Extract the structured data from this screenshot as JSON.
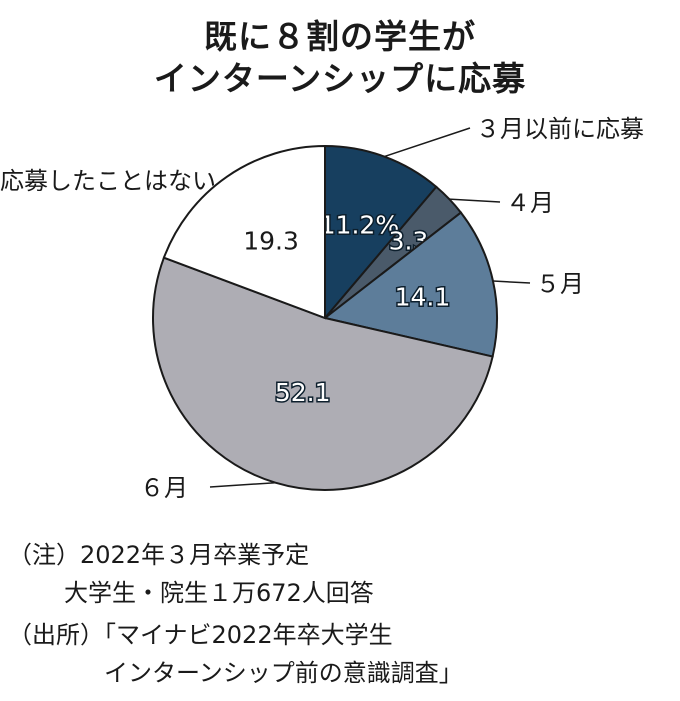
{
  "chart_data": {
    "type": "pie",
    "title": [
      "既に８割の学生が",
      "インターンシップに応募"
    ],
    "unit": "%",
    "slices": [
      {
        "label": "３月以前に応募",
        "value": 11.2,
        "display": "11.2%",
        "color": "#173f5f"
      },
      {
        "label": "４月",
        "value": 3.3,
        "display": "3.3",
        "color": "#4a5a6a"
      },
      {
        "label": "５月",
        "value": 14.1,
        "display": "14.1",
        "color": "#5d7d9a"
      },
      {
        "label": "６月",
        "value": 52.1,
        "display": "52.1",
        "color": "#aeadb4"
      },
      {
        "label": "応募したことはない",
        "value": 19.3,
        "display": "19.3",
        "color": "#ffffff"
      }
    ]
  },
  "notes": {
    "note1_line1": "（注）2022年３月卒業予定",
    "note1_line2": "大学生・院生１万672人回答",
    "source_line1": "（出所）「マイナビ2022年卒大学生",
    "source_line2": "インターンシップ前の意識調査」"
  }
}
